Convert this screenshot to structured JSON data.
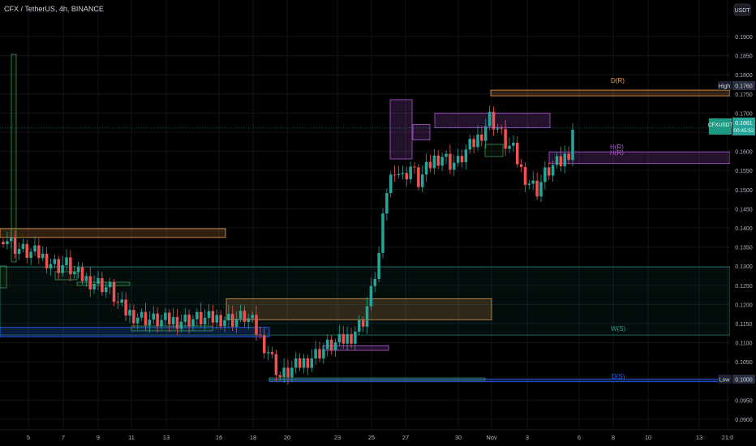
{
  "header": {
    "symbol_line": "CFX / TetherUS, 4h, BINANCE"
  },
  "price_axis": {
    "unit_button": "USDT",
    "ticks": [
      "0.1900",
      "0.1850",
      "0.1800",
      "0.1750",
      "0.1700",
      "0.1650",
      "0.1600",
      "0.1550",
      "0.1500",
      "0.1450",
      "0.1400",
      "0.1350",
      "0.1300",
      "0.1250",
      "0.1200",
      "0.1150",
      "0.1100",
      "0.1050",
      "0.1000",
      "0.0950",
      "0.0900"
    ],
    "high_label": "High",
    "high_value": "0.1760",
    "low_label": "Low",
    "low_value": "0.1000",
    "current_symbol": "CFXUSDT",
    "current_value": "0.1661",
    "current_countdown": "00:45:52"
  },
  "time_axis": {
    "ticks": [
      "5",
      "7",
      "9",
      "11",
      "13",
      "16",
      "18",
      "20",
      "23",
      "25",
      "27",
      "30",
      "Nov",
      "3",
      "6",
      "8",
      "10",
      "13",
      "21:0"
    ]
  },
  "annotations": {
    "d_r": "D(R)",
    "h_r": "H(R)",
    "h_r2": "H(R)",
    "w_s": "W(S)",
    "d_s": "D(S)"
  },
  "colors": {
    "background": "#000000",
    "grid": "#12151c",
    "up": "#26a69a",
    "down": "#ef5350",
    "orange_zone": "#f0a050",
    "purple_zone": "#b355d6",
    "teal_zone": "#1f7f70",
    "blue_zone": "#2962ff",
    "green_zone": "#3fa85a",
    "axis_text": "#b2b5be"
  },
  "chart_data": {
    "type": "candlestick",
    "title": "CFX / TetherUS, 4h, BINANCE",
    "xlabel": "",
    "ylabel": "USDT",
    "ylim": [
      0.088,
      0.1945
    ],
    "x_ticks": [
      "5",
      "7",
      "9",
      "11",
      "13",
      "16",
      "18",
      "20",
      "23",
      "25",
      "27",
      "30",
      "Nov",
      "3",
      "6",
      "8",
      "10",
      "13",
      "21:0"
    ],
    "current_price": 0.1661,
    "high": 0.176,
    "low": 0.1,
    "series": [
      {
        "name": "CFXUSDT",
        "anchors": [
          [
            0,
            0.138
          ],
          [
            3,
            0.135
          ],
          [
            6,
            0.1335
          ],
          [
            9,
            0.133
          ],
          [
            12,
            0.131
          ],
          [
            14,
            0.13
          ],
          [
            16,
            0.1305
          ],
          [
            18,
            0.128
          ],
          [
            21,
            0.1265
          ],
          [
            24,
            0.1255
          ],
          [
            27,
            0.124
          ],
          [
            29,
            0.12
          ],
          [
            31,
            0.118
          ],
          [
            34,
            0.117
          ],
          [
            37,
            0.116
          ],
          [
            40,
            0.1155
          ],
          [
            43,
            0.1158
          ],
          [
            46,
            0.116
          ],
          [
            49,
            0.1162
          ],
          [
            52,
            0.116
          ],
          [
            55,
            0.1165
          ],
          [
            58,
            0.116
          ],
          [
            61,
            0.1168
          ],
          [
            63,
            0.115
          ],
          [
            65,
            0.111
          ],
          [
            67,
            0.108
          ],
          [
            70,
            0.101
          ],
          [
            73,
            0.103
          ],
          [
            76,
            0.105
          ],
          [
            79,
            0.107
          ],
          [
            82,
            0.109
          ],
          [
            85,
            0.11
          ],
          [
            88,
            0.112
          ],
          [
            91,
            0.116
          ],
          [
            93,
            0.123
          ],
          [
            95,
            0.133
          ],
          [
            97,
            0.15
          ],
          [
            99,
            0.156
          ],
          [
            101,
            0.153
          ],
          [
            103,
            0.156
          ],
          [
            105,
            0.152
          ],
          [
            107,
            0.155
          ],
          [
            109,
            0.158
          ],
          [
            111,
            0.159
          ],
          [
            113,
            0.157
          ],
          [
            115,
            0.157
          ],
          [
            117,
            0.16
          ],
          [
            119,
            0.162
          ],
          [
            121,
            0.165
          ],
          [
            123,
            0.169
          ],
          [
            125,
            0.166
          ],
          [
            127,
            0.162
          ],
          [
            129,
            0.16
          ],
          [
            131,
            0.155
          ],
          [
            133,
            0.152
          ],
          [
            135,
            0.15
          ],
          [
            137,
            0.154
          ],
          [
            139,
            0.156
          ],
          [
            141,
            0.157
          ],
          [
            143,
            0.16
          ],
          [
            144,
            0.1661
          ]
        ]
      }
    ],
    "zones": [
      {
        "type": "orange",
        "y1": 0.1398,
        "y2": 0.1375
      },
      {
        "type": "orange",
        "y1": 0.176,
        "y2": 0.1745,
        "label": "D(R)"
      },
      {
        "type": "orange",
        "y1": 0.1215,
        "y2": 0.116
      },
      {
        "type": "purple",
        "y1": 0.1735,
        "y2": 0.158
      },
      {
        "type": "purple",
        "y1": 0.17,
        "y2": 0.1662
      },
      {
        "type": "purple",
        "y1": 0.167,
        "y2": 0.163
      },
      {
        "type": "purple",
        "y1": 0.1092,
        "y2": 0.108
      },
      {
        "type": "purple",
        "y1": 0.1598,
        "y2": 0.1568,
        "label": "H(R)"
      },
      {
        "type": "teal",
        "y1": 0.1298,
        "y2": 0.112,
        "label": "W(S)"
      },
      {
        "type": "blue",
        "y1": 0.114,
        "y2": 0.1115
      },
      {
        "type": "blue",
        "y1": 0.1005,
        "y2": 0.0998,
        "label": "D(S)"
      }
    ]
  }
}
